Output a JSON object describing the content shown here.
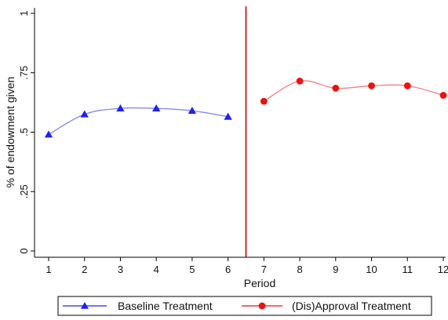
{
  "chart_data": {
    "type": "line",
    "xlabel": "Period",
    "ylabel": "% of endowment given",
    "x_ticks": [
      "1",
      "2",
      "3",
      "4",
      "5",
      "6",
      "7",
      "8",
      "9",
      "10",
      "11",
      "12"
    ],
    "y_ticks": [
      {
        "value": 0,
        "label": "0"
      },
      {
        "value": 0.25,
        "label": ".25"
      },
      {
        "value": 0.5,
        "label": ".5"
      },
      {
        "value": 0.75,
        "label": ".75"
      },
      {
        "value": 1,
        "label": "1"
      }
    ],
    "xlim": [
      0.8,
      12.05
    ],
    "ylim": [
      0,
      1
    ],
    "grid": false,
    "legend_position": "bottom",
    "divider": {
      "x": 6.5,
      "color": "#cc0000"
    },
    "series": [
      {
        "name": "Baseline Treatment",
        "marker": "triangle",
        "color": "#2222ee",
        "line_color": "#8888ee",
        "x": [
          1,
          2,
          3,
          4,
          5,
          6
        ],
        "values": [
          0.49,
          0.575,
          0.6,
          0.6,
          0.59,
          0.565
        ]
      },
      {
        "name": "(Dis)Approval Treatment",
        "marker": "circle",
        "color": "#ee1111",
        "line_color": "#f08080",
        "x": [
          7,
          8,
          9,
          10,
          11,
          12
        ],
        "values": [
          0.63,
          0.715,
          0.685,
          0.695,
          0.695,
          0.655
        ]
      }
    ]
  }
}
